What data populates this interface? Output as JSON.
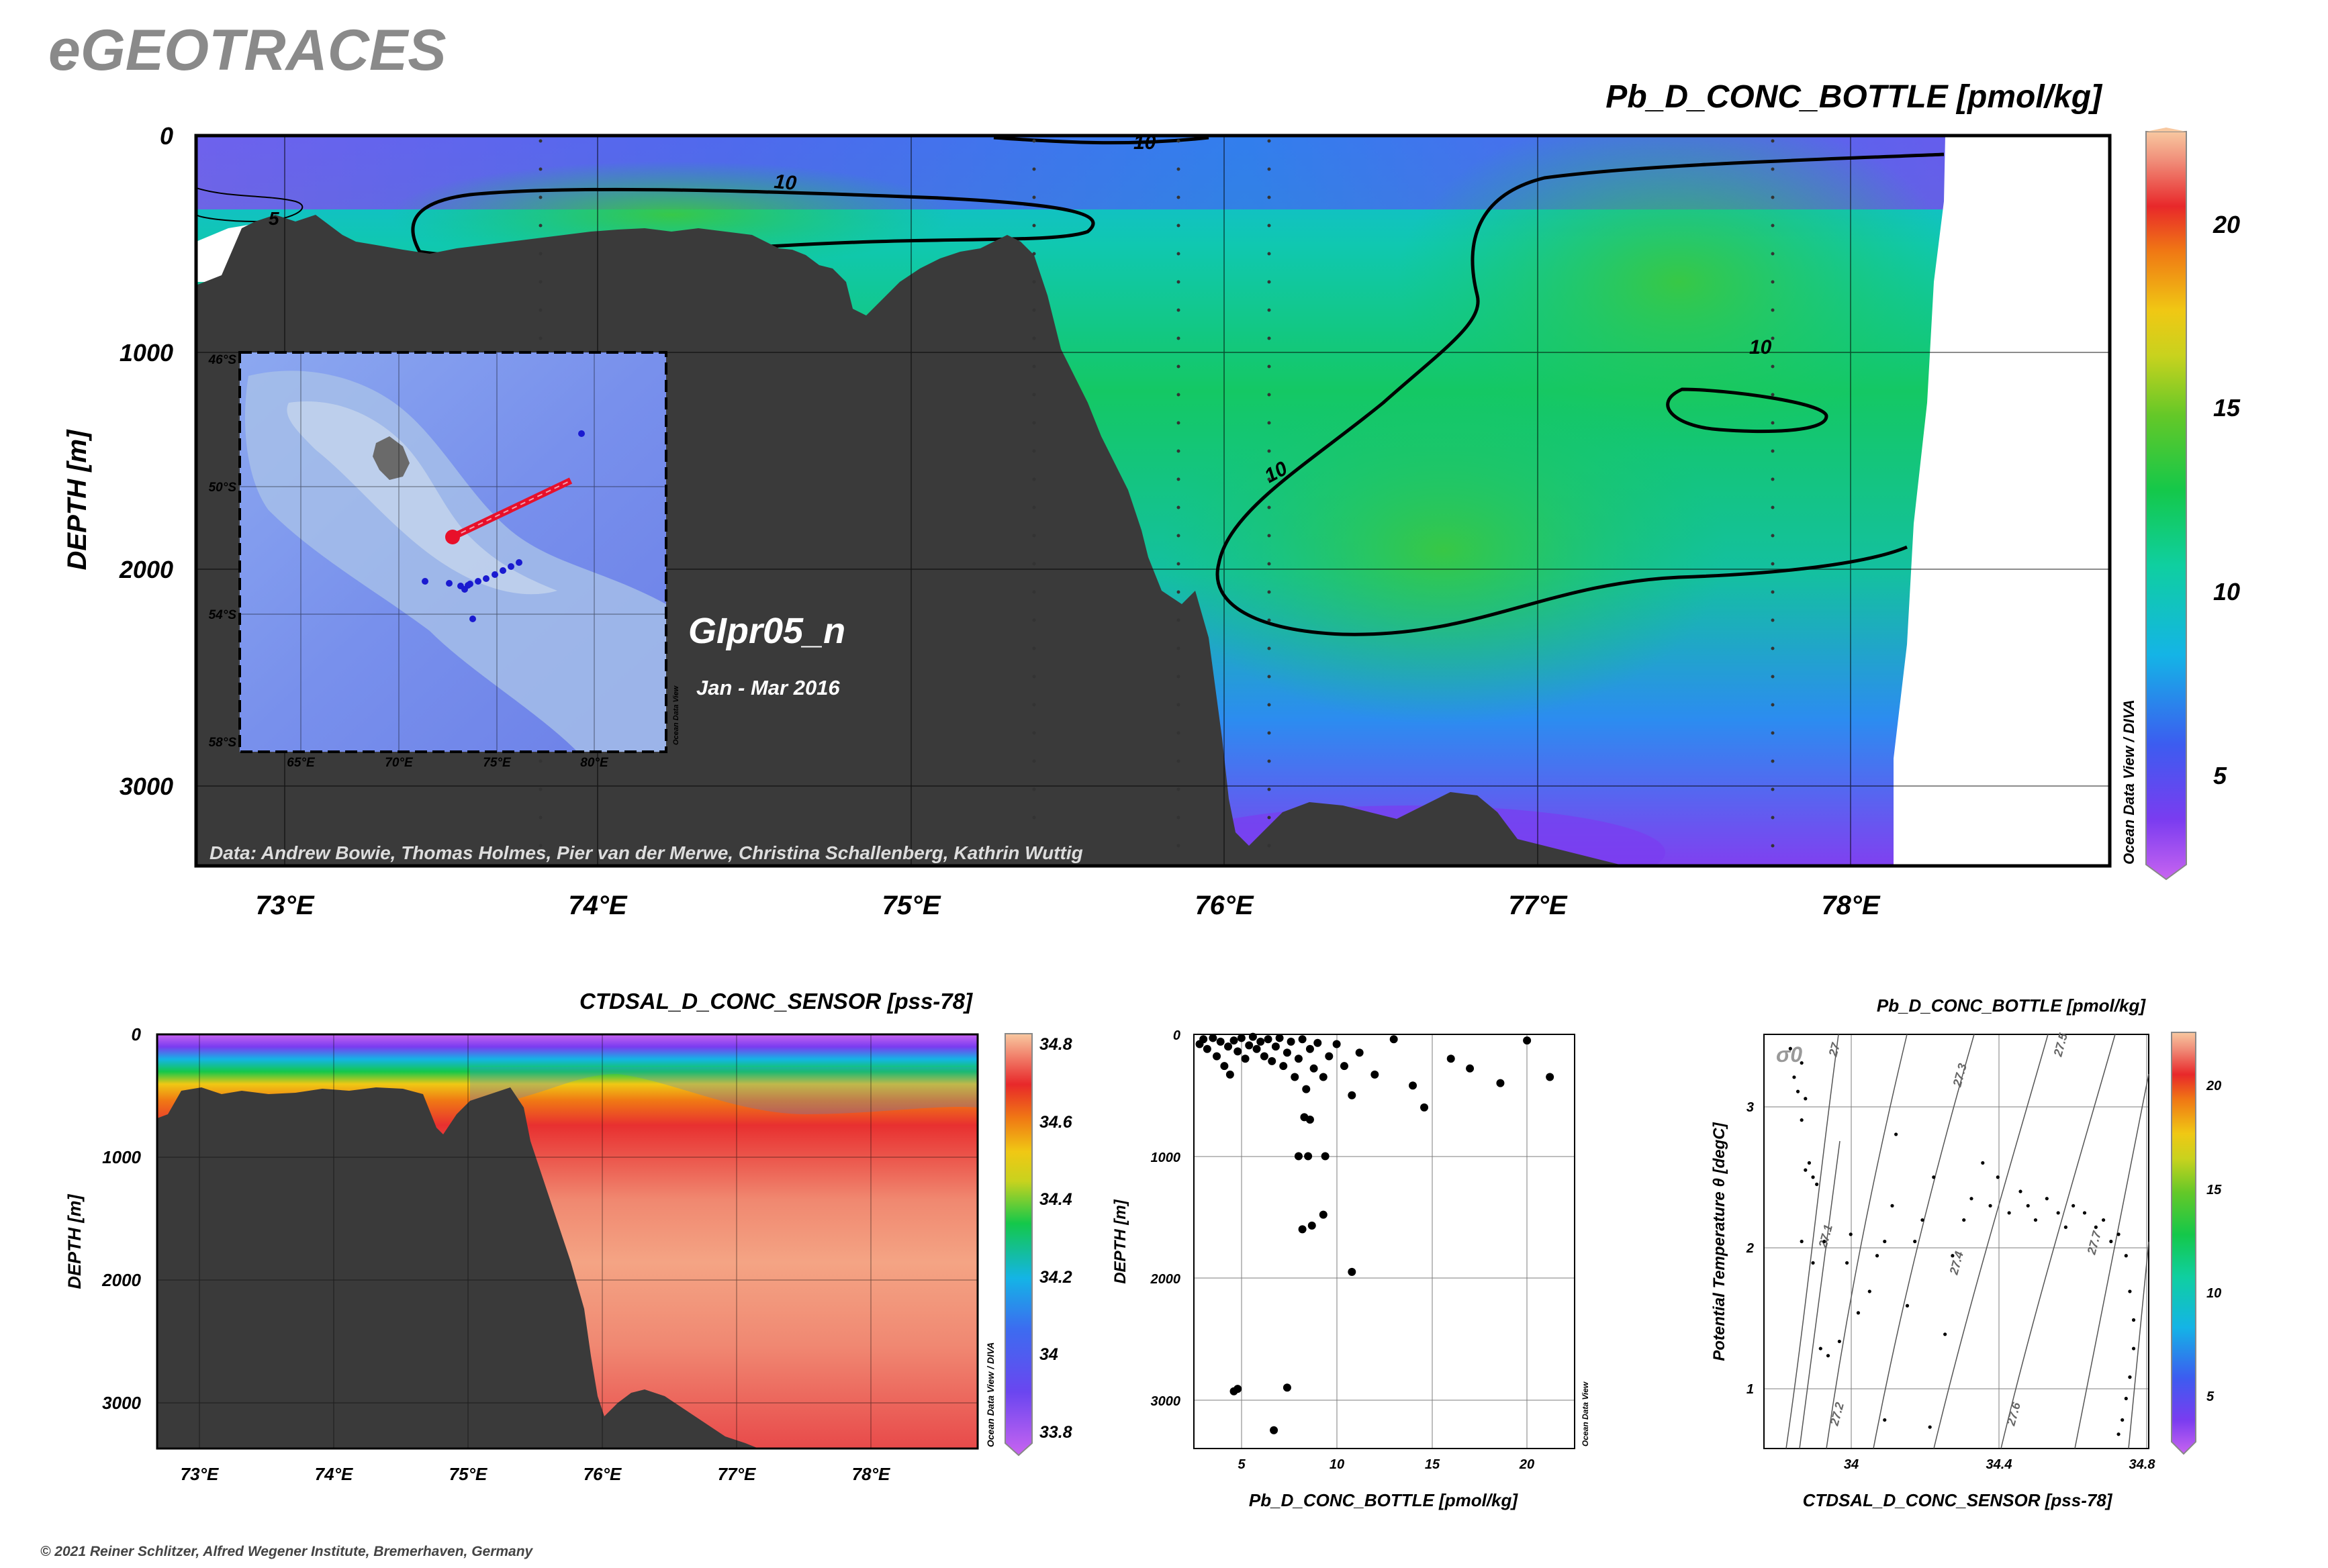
{
  "brand": "eGEOTRACES",
  "copyright": "© 2021 Reiner Schlitzer, Alfred Wegener Institute, Bremerhaven, Germany",
  "colors": {
    "bathymetry": "#3a3a3a",
    "cruise_track": "#e8102a",
    "stations": "#1a1ad0",
    "background": "#ffffff"
  },
  "main_section": {
    "title": "Pb_D_CONC_BOTTLE [pmol/kg]",
    "ylabel": "DEPTH [m]",
    "cruise": "GIpr05_n",
    "period": "Jan - Mar 2016",
    "credits": "Data: Andrew Bowie, Thomas Holmes, Pier van der Merwe, Christina Schallenberg, Kathrin Wuttig",
    "watermark": "Ocean Data View / DIVA",
    "contour_labels": [
      "10",
      "10",
      "10",
      "10",
      "5"
    ],
    "inset_map": {
      "lat_labels": [
        "46°S",
        "50°S",
        "54°S",
        "58°S"
      ],
      "lon_labels": [
        "65°E",
        "70°E",
        "75°E",
        "80°E"
      ],
      "watermark": "Ocean Data View"
    }
  },
  "salinity_section": {
    "title": "CTDSAL_D_CONC_SENSOR [pss-78]",
    "ylabel": "DEPTH [m]",
    "watermark": "Ocean Data View / DIVA"
  },
  "scatter_plot": {
    "xlabel": "Pb_D_CONC_BOTTLE [pmol/kg]",
    "ylabel": "DEPTH [m]",
    "watermark": "Ocean Data View"
  },
  "ts_plot": {
    "title": "Pb_D_CONC_BOTTLE [pmol/kg]",
    "xlabel": "CTDSAL_D_CONC_SENSOR [pss-78]",
    "ylabel": "Potential Temperature θ [degC]",
    "sigma_symbol": "σ0",
    "isopycnal_labels": [
      "27",
      "27.1",
      "27.2",
      "27.3",
      "27.4",
      "27.5",
      "27.6",
      "27.7"
    ]
  },
  "chart_data": [
    {
      "type": "heatmap",
      "name_ref": "main-section",
      "title": "Pb_D_CONC_BOTTLE [pmol/kg]",
      "xlabel": "",
      "ylabel": "DEPTH [m]",
      "x_ticks": [
        "73°E",
        "74°E",
        "75°E",
        "76°E",
        "77°E",
        "78°E"
      ],
      "y_ticks": [
        "0",
        "1000",
        "2000",
        "3000"
      ],
      "xlim": [
        72.7,
        78.8
      ],
      "ylim": [
        3500,
        0
      ],
      "colorbar": {
        "ticks": [
          "5",
          "10",
          "15",
          "20"
        ],
        "range": [
          2.5,
          22.5
        ]
      },
      "contours": [
        5,
        10
      ]
    },
    {
      "type": "heatmap",
      "name_ref": "salinity-section",
      "title": "CTDSAL_D_CONC_SENSOR [pss-78]",
      "ylabel": "DEPTH [m]",
      "x_ticks": [
        "73°E",
        "74°E",
        "75°E",
        "76°E",
        "77°E",
        "78°E"
      ],
      "y_ticks": [
        "0",
        "1000",
        "2000",
        "3000"
      ],
      "xlim": [
        72.7,
        78.8
      ],
      "ylim": [
        3400,
        0
      ],
      "colorbar": {
        "ticks": [
          "34.8",
          "34.6",
          "34.4",
          "34.2",
          "34",
          "33.8"
        ],
        "range": [
          33.75,
          34.83
        ]
      }
    },
    {
      "type": "scatter",
      "name_ref": "scatter-plot",
      "xlabel": "Pb_D_CONC_BOTTLE [pmol/kg]",
      "ylabel": "DEPTH [m]",
      "x_ticks": [
        "5",
        "10",
        "15",
        "20"
      ],
      "y_ticks": [
        "0",
        "1000",
        "2000",
        "3000"
      ],
      "xlim": [
        2.5,
        22.5
      ],
      "ylim": [
        3400,
        0
      ],
      "points": [
        [
          2.8,
          80
        ],
        [
          3.0,
          40
        ],
        [
          3.2,
          120
        ],
        [
          3.5,
          30
        ],
        [
          3.7,
          180
        ],
        [
          3.9,
          60
        ],
        [
          4.1,
          260
        ],
        [
          4.3,
          100
        ],
        [
          4.4,
          330
        ],
        [
          4.6,
          50
        ],
        [
          4.8,
          140
        ],
        [
          5.0,
          30
        ],
        [
          5.2,
          200
        ],
        [
          5.4,
          90
        ],
        [
          5.6,
          20
        ],
        [
          5.8,
          120
        ],
        [
          6.0,
          60
        ],
        [
          6.2,
          180
        ],
        [
          6.4,
          40
        ],
        [
          6.6,
          220
        ],
        [
          6.8,
          100
        ],
        [
          7.0,
          30
        ],
        [
          7.2,
          260
        ],
        [
          7.4,
          150
        ],
        [
          7.6,
          60
        ],
        [
          7.8,
          350
        ],
        [
          8.0,
          200
        ],
        [
          8.2,
          40
        ],
        [
          8.4,
          450
        ],
        [
          8.6,
          120
        ],
        [
          8.8,
          280
        ],
        [
          9.0,
          70
        ],
        [
          9.3,
          350
        ],
        [
          9.6,
          180
        ],
        [
          10.0,
          80
        ],
        [
          10.4,
          260
        ],
        [
          10.8,
          500
        ],
        [
          11.2,
          150
        ],
        [
          12.0,
          330
        ],
        [
          13.0,
          40
        ],
        [
          14.0,
          420
        ],
        [
          14.6,
          600
        ],
        [
          16.0,
          200
        ],
        [
          17.0,
          280
        ],
        [
          18.6,
          400
        ],
        [
          20.0,
          50
        ],
        [
          21.2,
          350
        ],
        [
          8.3,
          680
        ],
        [
          8.6,
          700
        ],
        [
          8.0,
          1000
        ],
        [
          8.5,
          1000
        ],
        [
          9.4,
          1000
        ],
        [
          8.2,
          1600
        ],
        [
          8.7,
          1570
        ],
        [
          9.3,
          1480
        ],
        [
          10.8,
          1950
        ],
        [
          4.6,
          2930
        ],
        [
          4.8,
          2910
        ],
        [
          7.4,
          2900
        ],
        [
          6.7,
          3250
        ]
      ]
    },
    {
      "type": "scatter",
      "name_ref": "ts-plot",
      "title": "Pb_D_CONC_BOTTLE [pmol/kg]",
      "xlabel": "CTDSAL_D_CONC_SENSOR [pss-78]",
      "ylabel": "Potential Temperature θ [degC]",
      "x_ticks": [
        "34",
        "34.4",
        "34.8"
      ],
      "y_ticks": [
        "1",
        "2",
        "3"
      ],
      "xlim": [
        33.8,
        34.82
      ],
      "ylim": [
        0.6,
        3.5
      ],
      "colorbar": {
        "ticks": [
          "20",
          "15",
          "10",
          "5"
        ],
        "range": [
          2.5,
          22.5
        ]
      },
      "points": [
        [
          33.87,
          3.4
        ],
        [
          33.88,
          3.2
        ],
        [
          33.89,
          3.1
        ],
        [
          33.9,
          3.3
        ],
        [
          33.91,
          3.05
        ],
        [
          33.9,
          2.9
        ],
        [
          33.92,
          2.6
        ],
        [
          33.93,
          2.5
        ],
        [
          33.94,
          2.45
        ],
        [
          33.91,
          2.55
        ],
        [
          33.96,
          2.05
        ],
        [
          33.9,
          2.05
        ],
        [
          33.93,
          1.9
        ],
        [
          33.95,
          1.3
        ],
        [
          33.97,
          1.25
        ],
        [
          34.0,
          1.35
        ],
        [
          34.02,
          1.9
        ],
        [
          34.03,
          2.1
        ],
        [
          34.05,
          1.55
        ],
        [
          34.08,
          1.7
        ],
        [
          34.1,
          1.95
        ],
        [
          34.12,
          2.05
        ],
        [
          34.14,
          2.3
        ],
        [
          34.15,
          2.8
        ],
        [
          34.18,
          1.6
        ],
        [
          34.2,
          2.05
        ],
        [
          34.22,
          2.2
        ],
        [
          34.25,
          2.5
        ],
        [
          34.28,
          1.4
        ],
        [
          34.3,
          1.95
        ],
        [
          34.33,
          2.2
        ],
        [
          34.35,
          2.35
        ],
        [
          34.38,
          2.6
        ],
        [
          34.4,
          2.3
        ],
        [
          34.42,
          2.5
        ],
        [
          34.45,
          2.25
        ],
        [
          34.48,
          2.4
        ],
        [
          34.5,
          2.3
        ],
        [
          34.52,
          2.2
        ],
        [
          34.55,
          2.35
        ],
        [
          34.58,
          2.25
        ],
        [
          34.6,
          2.15
        ],
        [
          34.62,
          2.3
        ],
        [
          34.65,
          2.25
        ],
        [
          34.68,
          2.15
        ],
        [
          34.7,
          2.2
        ],
        [
          34.72,
          2.05
        ],
        [
          34.74,
          2.1
        ],
        [
          34.76,
          1.95
        ],
        [
          34.77,
          1.7
        ],
        [
          34.78,
          1.5
        ],
        [
          34.78,
          1.3
        ],
        [
          34.77,
          1.1
        ],
        [
          34.76,
          0.95
        ],
        [
          34.75,
          0.8
        ],
        [
          34.74,
          0.7
        ],
        [
          34.12,
          0.8
        ],
        [
          34.24,
          0.75
        ]
      ]
    }
  ]
}
